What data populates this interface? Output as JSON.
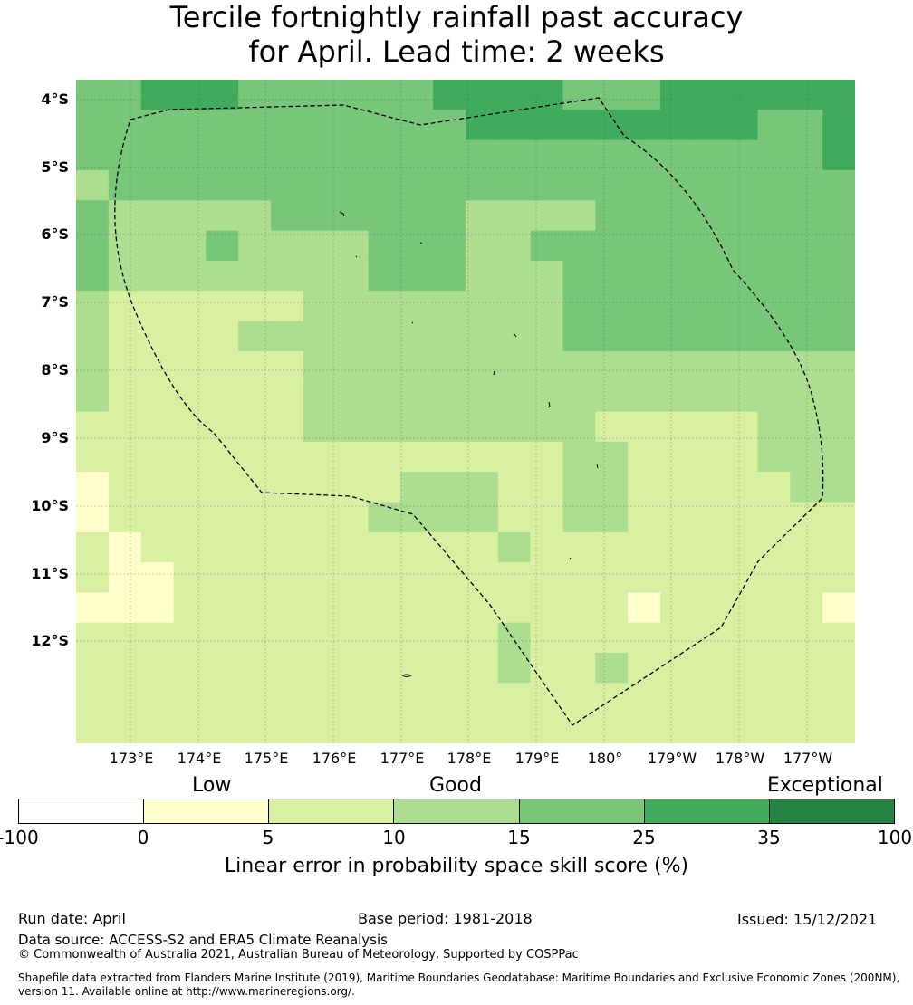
{
  "title": {
    "line1": "Tercile fortnightly rainfall past accuracy",
    "line2": "for April. Lead time: 2 weeks"
  },
  "map": {
    "lat_labels": [
      "4°S",
      "5°S",
      "6°S",
      "7°S",
      "8°S",
      "9°S",
      "10°S",
      "11°S",
      "12°S"
    ],
    "lon_labels": [
      "173°E",
      "174°E",
      "175°E",
      "176°E",
      "177°E",
      "178°E",
      "179°E",
      "180°",
      "179°W",
      "178°W",
      "177°W"
    ],
    "grid_colors": [
      "#ffffcc",
      "#d9f0a3",
      "#addd8e",
      "#78c679",
      "#41ab5d",
      "#238443"
    ],
    "grid_rows": [
      "334443333334444333444444",
      "333333333333444444444334",
      "333333333333333333333334",
      "233333333333333333333333",
      "322222333333222233333333",
      "322232222333223333333333",
      "322222222333222333333333",
      "211111122222222333333333",
      "211112222222222333333333",
      "211111122222222222222222",
      "211111122222222222222222",
      "111111122222222211111222",
      "111111111111111221111222",
      "011111111122211221111122",
      "011111111222211221111111",
      "101111111111121111111111",
      "100111111111111111111111",
      "000111111111111110111110",
      "111111111111121111111111",
      "111111111111121121111111",
      "111111111111111111111111",
      "111111111111111111111111"
    ]
  },
  "colorbar": {
    "categories": [
      "Low",
      "Good",
      "Exceptional"
    ],
    "ticks": [
      "-100",
      "0",
      "5",
      "10",
      "15",
      "25",
      "35",
      "100"
    ],
    "colors": [
      "#ffffff",
      "#ffffcc",
      "#d9f0a3",
      "#addd8e",
      "#78c679",
      "#41ab5d",
      "#238443"
    ],
    "label": "Linear error in probability space skill score (%)"
  },
  "footer": {
    "run_date": "Run date: April",
    "base_period": "Base period: 1981-2018",
    "issued": "Issued: 15/12/2021",
    "data_source": "Data source: ACCESS-S2 and ERA5 Climate Reanalysis",
    "copyright": "© Commonwealth of Australia 2021, Australian Bureau of Meteorology, Supported by COSPPac",
    "shapefile_line1": "Shapefile data extracted from Flanders Marine Institute (2019), Maritime Boundaries Geodatabase: Maritime Boundaries and Exclusive Economic Zones (200NM),",
    "shapefile_line2": "version 11. Available online at http://www.marineregions.org/."
  }
}
